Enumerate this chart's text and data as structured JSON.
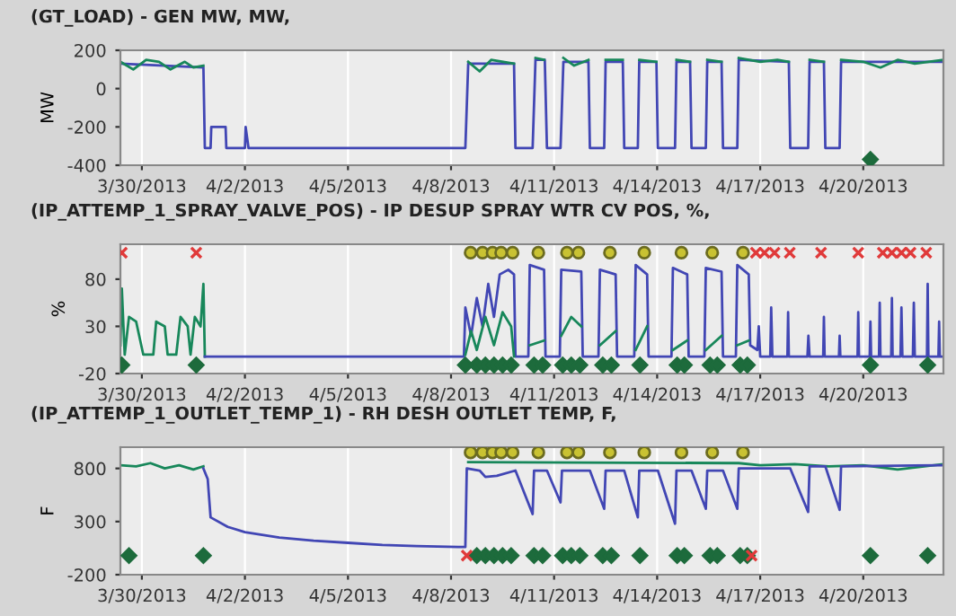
{
  "chart_data": [
    {
      "type": "line",
      "title": "(GT_LOAD) - GEN MW, MW,",
      "ylabel": "MW",
      "xlim": [
        "2013-03-29T09:00",
        "2013-04-22T08:00"
      ],
      "ylim": [
        -400,
        200
      ],
      "yticks": [
        -400,
        -200,
        0,
        200
      ],
      "xticks": [
        {
          "value": "2013-03-30",
          "label": "3/30/2013"
        },
        {
          "value": "2013-04-02",
          "label": "4/2/2013"
        },
        {
          "value": "2013-04-05",
          "label": "4/5/2013"
        },
        {
          "value": "2013-04-08",
          "label": "4/8/2013"
        },
        {
          "value": "2013-04-11",
          "label": "4/11/2013"
        },
        {
          "value": "2013-04-14",
          "label": "4/14/2013"
        },
        {
          "value": "2013-04-17",
          "label": "4/17/2013"
        },
        {
          "value": "2013-04-20",
          "label": "4/20/2013"
        }
      ],
      "grid": "x",
      "series": [
        {
          "type": "line",
          "color": "#4146b4",
          "x": [
            "2013-03-29T09:00",
            "2013-03-31T19:00",
            "2013-03-31T20:00",
            "2013-04-01T00:00",
            "2013-04-01T00:30",
            "2013-04-01T10:30",
            "2013-04-01T11:00",
            "2013-04-02T00:00",
            "2013-04-02T00:30",
            "2013-04-02T02:30",
            "2013-04-08T10:00",
            "2013-04-08T12:00",
            "2013-04-09T20:00",
            "2013-04-09T21:00",
            "2013-04-10T09:00",
            "2013-04-10T11:00",
            "2013-04-10T17:30",
            "2013-04-10T19:00",
            "2013-04-11T04:30",
            "2013-04-11T06:30",
            "2013-04-12T00:00",
            "2013-04-12T01:00",
            "2013-04-12T11:00",
            "2013-04-12T12:00",
            "2013-04-13T00:00",
            "2013-04-13T01:00",
            "2013-04-13T10:30",
            "2013-04-13T11:30",
            "2013-04-13T23:30",
            "2013-04-14T00:30",
            "2013-04-14T12:30",
            "2013-04-14T13:30",
            "2013-04-14T23:00",
            "2013-04-15T00:00",
            "2013-04-15T10:00",
            "2013-04-15T11:00",
            "2013-04-15T21:00",
            "2013-04-15T22:00",
            "2013-04-16T08:00",
            "2013-04-16T09:00",
            "2013-04-17T20:00",
            "2013-04-17T21:00",
            "2013-04-18T09:30",
            "2013-04-18T10:30",
            "2013-04-18T20:30",
            "2013-04-18T21:30",
            "2013-04-19T07:30",
            "2013-04-19T08:30",
            "2013-04-22T08:00"
          ],
          "values": [
            130,
            110,
            -310,
            -310,
            -200,
            -200,
            -310,
            -310,
            -200,
            -310,
            -310,
            130,
            130,
            -310,
            -310,
            150,
            150,
            -310,
            -310,
            140,
            140,
            -310,
            -310,
            140,
            140,
            -310,
            -310,
            140,
            140,
            -310,
            -310,
            140,
            140,
            -310,
            -310,
            140,
            140,
            -310,
            -310,
            150,
            140,
            -310,
            -310,
            140,
            140,
            -310,
            -310,
            140,
            140
          ]
        },
        {
          "type": "line",
          "color": "#17875a",
          "x": [
            "2013-03-29T09:00",
            "2013-03-29T18:00",
            "2013-03-30T03:00",
            "2013-03-30T12:00",
            "2013-03-30T20:00",
            "2013-03-31T06:00",
            "2013-03-31T12:00",
            "2013-03-31T19:00",
            "2013-03-31T20:00",
            "2013-04-08T12:00",
            "2013-04-08T20:00",
            "2013-04-09T04:00",
            "2013-04-09T20:00",
            "2013-04-09T21:00",
            "2013-04-10T11:00",
            "2013-04-10T17:00",
            "2013-04-10T18:00",
            "2013-04-11T06:30",
            "2013-04-11T14:00",
            "2013-04-12T00:00",
            "2013-04-12T01:00",
            "2013-04-12T12:00",
            "2013-04-13T00:00",
            "2013-04-13T01:00",
            "2013-04-13T11:30",
            "2013-04-13T23:30",
            "2013-04-14T00:30",
            "2013-04-14T13:30",
            "2013-04-14T23:00",
            "2013-04-15T00:00",
            "2013-04-15T11:00",
            "2013-04-15T21:00",
            "2013-04-15T22:00",
            "2013-04-16T09:00",
            "2013-04-17T00:00",
            "2013-04-17T12:00",
            "2013-04-17T20:00",
            "2013-04-17T21:00",
            "2013-04-18T10:30",
            "2013-04-18T20:30",
            "2013-04-18T21:30",
            "2013-04-19T08:30",
            "2013-04-20T00:00",
            "2013-04-20T12:00",
            "2013-04-21T00:00",
            "2013-04-21T12:00",
            "2013-04-22T08:00"
          ],
          "values": [
            140,
            100,
            150,
            140,
            100,
            140,
            110,
            120,
            null,
            140,
            90,
            150,
            130,
            null,
            160,
            150,
            null,
            160,
            120,
            150,
            null,
            150,
            150,
            null,
            150,
            140,
            null,
            150,
            140,
            null,
            150,
            140,
            null,
            160,
            140,
            150,
            140,
            null,
            150,
            140,
            null,
            150,
            140,
            110,
            150,
            130,
            150
          ]
        },
        {
          "type": "scatter",
          "marker": "diamond",
          "color": "#1d6b3c",
          "x": [
            "2013-04-20T05:00"
          ],
          "values": [
            -370
          ]
        }
      ]
    },
    {
      "type": "line",
      "title": "(IP_ATTEMP_1_SPRAY_VALVE_POS) - IP DESUP SPRAY WTR CV POS, %,",
      "ylabel": "%",
      "xlim": [
        "2013-03-29T09:00",
        "2013-04-22T08:00"
      ],
      "ylim": [
        -20,
        117
      ],
      "yticks": [
        -20,
        30,
        80
      ],
      "xticks": [
        {
          "value": "2013-03-30",
          "label": "3/30/2013"
        },
        {
          "value": "2013-04-02",
          "label": "4/2/2013"
        },
        {
          "value": "2013-04-05",
          "label": "4/5/2013"
        },
        {
          "value": "2013-04-08",
          "label": "4/8/2013"
        },
        {
          "value": "2013-04-11",
          "label": "4/11/2013"
        },
        {
          "value": "2013-04-14",
          "label": "4/14/2013"
        },
        {
          "value": "2013-04-17",
          "label": "4/17/2013"
        },
        {
          "value": "2013-04-20",
          "label": "4/20/2013"
        }
      ],
      "grid": "x",
      "series": [
        {
          "type": "line",
          "color": "#17875a",
          "x": [
            "2013-03-29T09:00",
            "2013-03-29T10:00",
            "2013-03-29T12:00",
            "2013-03-29T15:00",
            "2013-03-29T20:00",
            "2013-03-30T01:00",
            "2013-03-30T08:00",
            "2013-03-30T10:00",
            "2013-03-30T16:00",
            "2013-03-30T18:00",
            "2013-03-31T00:00",
            "2013-03-31T03:00",
            "2013-03-31T08:00",
            "2013-03-31T10:00",
            "2013-03-31T13:00",
            "2013-03-31T17:00",
            "2013-03-31T19:00",
            "2013-03-31T20:00"
          ],
          "values": [
            10,
            70,
            0,
            40,
            35,
            0,
            0,
            35,
            30,
            0,
            0,
            40,
            30,
            0,
            40,
            30,
            75,
            -2
          ]
        },
        {
          "type": "line",
          "color": "#4146b4",
          "x": [
            "2013-03-31T20:00",
            "2013-04-08T09:00",
            "2013-04-08T10:00",
            "2013-04-08T14:00",
            "2013-04-08T18:00",
            "2013-04-08T22:00",
            "2013-04-09T02:00",
            "2013-04-09T06:00",
            "2013-04-09T10:00",
            "2013-04-09T16:00",
            "2013-04-09T20:00",
            "2013-04-09T21:00",
            "2013-04-10T06:00",
            "2013-04-10T07:00",
            "2013-04-10T17:00",
            "2013-04-10T18:00",
            "2013-04-11T04:00",
            "2013-04-11T05:00",
            "2013-04-11T19:00",
            "2013-04-11T20:00",
            "2013-04-12T07:00",
            "2013-04-12T08:00",
            "2013-04-12T19:00",
            "2013-04-12T20:00",
            "2013-04-13T08:00",
            "2013-04-13T09:00",
            "2013-04-13T17:00",
            "2013-04-13T18:00",
            "2013-04-14T10:00",
            "2013-04-14T11:00",
            "2013-04-14T21:00",
            "2013-04-14T22:00",
            "2013-04-15T09:00",
            "2013-04-15T10:00",
            "2013-04-15T21:00",
            "2013-04-15T22:00",
            "2013-04-16T07:00",
            "2013-04-16T08:00",
            "2013-04-16T16:00",
            "2013-04-16T17:00",
            "2013-04-16T22:00",
            "2013-04-16T23:00",
            "2013-04-17T00:00",
            "2013-04-17T07:00",
            "2013-04-17T07:40",
            "2013-04-17T08:30",
            "2013-04-17T19:00",
            "2013-04-17T19:30",
            "2013-04-17T20:00",
            "2013-04-18T09:00",
            "2013-04-18T09:40",
            "2013-04-18T10:30",
            "2013-04-18T20:00",
            "2013-04-18T20:30",
            "2013-04-18T21:00",
            "2013-04-19T07:00",
            "2013-04-19T07:30",
            "2013-04-19T08:00",
            "2013-04-19T20:00",
            "2013-04-19T20:30",
            "2013-04-19T21:00",
            "2013-04-20T04:30",
            "2013-04-20T05:00",
            "2013-04-20T05:30",
            "2013-04-20T11:00",
            "2013-04-20T11:30",
            "2013-04-20T12:00",
            "2013-04-20T19:30",
            "2013-04-20T20:00",
            "2013-04-20T20:30",
            "2013-04-21T02:00",
            "2013-04-21T02:40",
            "2013-04-21T03:20",
            "2013-04-21T10:40",
            "2013-04-21T11:20",
            "2013-04-21T12:00",
            "2013-04-21T20:30",
            "2013-04-21T21:00",
            "2013-04-21T21:30",
            "2013-04-22T04:30",
            "2013-04-22T05:00",
            "2013-04-22T05:30",
            "2013-04-22T08:00"
          ],
          "values": [
            -2,
            -2,
            50,
            20,
            60,
            30,
            75,
            40,
            85,
            90,
            85,
            -2,
            -2,
            95,
            90,
            -2,
            -2,
            90,
            88,
            -2,
            -2,
            90,
            85,
            -2,
            -2,
            95,
            85,
            -2,
            -2,
            92,
            85,
            -2,
            -2,
            92,
            88,
            -2,
            -2,
            95,
            85,
            10,
            5,
            30,
            -2,
            -2,
            50,
            -2,
            -2,
            45,
            -2,
            -2,
            20,
            -2,
            -2,
            40,
            -2,
            -2,
            20,
            -2,
            -2,
            45,
            -2,
            -2,
            35,
            -2,
            -2,
            55,
            -2,
            -2,
            60,
            -2,
            -2,
            50,
            -2,
            -2,
            55,
            -2,
            -2,
            75,
            -2,
            -2,
            35,
            -2,
            -2
          ]
        },
        {
          "type": "line",
          "color": "#17875a",
          "x": [
            "2013-04-08T10:00",
            "2013-04-08T14:00",
            "2013-04-08T18:00",
            "2013-04-09T00:00",
            "2013-04-09T06:00",
            "2013-04-09T12:00",
            "2013-04-09T18:00",
            "2013-04-09T20:00",
            "2013-04-10T00:00",
            "2013-04-10T07:00",
            "2013-04-10T17:00",
            "2013-04-11T00:00",
            "2013-04-11T05:00",
            "2013-04-11T12:00",
            "2013-04-11T19:00",
            "2013-04-12T00:00",
            "2013-04-12T08:00",
            "2013-04-12T19:00",
            "2013-04-13T00:00",
            "2013-04-13T09:00",
            "2013-04-13T17:00",
            "2013-04-14T00:00",
            "2013-04-14T11:00",
            "2013-04-14T21:00",
            "2013-04-15T00:00",
            "2013-04-15T10:00",
            "2013-04-15T21:00",
            "2013-04-16T00:00",
            "2013-04-16T08:00",
            "2013-04-16T16:00"
          ],
          "values": [
            0,
            25,
            5,
            40,
            10,
            45,
            30,
            -2,
            null,
            10,
            15,
            null,
            20,
            40,
            30,
            null,
            10,
            25,
            null,
            5,
            30,
            null,
            5,
            15,
            null,
            5,
            20,
            null,
            10,
            15
          ]
        },
        {
          "type": "scatter",
          "marker": "cross",
          "color": "#e03a3a",
          "x": [
            "2013-03-29T10:00",
            "2013-03-31T14:00",
            "2013-04-16T21:00",
            "2013-04-17T03:00",
            "2013-04-17T10:00",
            "2013-04-17T20:40",
            "2013-04-18T18:30",
            "2013-04-19T20:30",
            "2013-04-20T13:40",
            "2013-04-20T20:00",
            "2013-04-21T02:40",
            "2013-04-21T09:00",
            "2013-04-21T20:00"
          ],
          "values": [
            108,
            108,
            108,
            108,
            108,
            108,
            108,
            108,
            108,
            108,
            108,
            108,
            108
          ]
        },
        {
          "type": "scatter",
          "marker": "circle",
          "color": "#c9c232",
          "x": [
            "2013-04-08T13:40",
            "2013-04-08T22:00",
            "2013-04-09T05:00",
            "2013-04-09T11:00",
            "2013-04-09T19:00",
            "2013-04-10T13:00",
            "2013-04-11T09:00",
            "2013-04-11T17:00",
            "2013-04-12T15:00",
            "2013-04-13T15:00",
            "2013-04-14T17:00",
            "2013-04-15T14:30",
            "2013-04-16T12:00"
          ],
          "values": [
            108,
            108,
            108,
            108,
            108,
            108,
            108,
            108,
            108,
            108,
            108,
            108,
            108
          ]
        },
        {
          "type": "scatter",
          "marker": "diamond",
          "color": "#1d6b3c",
          "x": [
            "2013-03-29T10:00",
            "2013-03-31T14:00",
            "2013-04-08T10:00",
            "2013-04-08T18:00",
            "2013-04-09T00:00",
            "2013-04-09T06:00",
            "2013-04-09T12:00",
            "2013-04-09T18:00",
            "2013-04-10T10:00",
            "2013-04-10T16:00",
            "2013-04-11T06:00",
            "2013-04-11T12:00",
            "2013-04-11T18:00",
            "2013-04-12T10:00",
            "2013-04-12T16:00",
            "2013-04-13T12:00",
            "2013-04-14T14:00",
            "2013-04-14T19:00",
            "2013-04-15T13:00",
            "2013-04-15T18:00",
            "2013-04-16T10:00",
            "2013-04-16T15:00",
            "2013-04-20T05:00",
            "2013-04-21T21:00"
          ],
          "values": [
            -11,
            -11,
            -11,
            -11,
            -11,
            -11,
            -11,
            -11,
            -11,
            -11,
            -11,
            -11,
            -11,
            -11,
            -11,
            -11,
            -11,
            -11,
            -11,
            -11,
            -11,
            -11,
            -11,
            -11
          ]
        }
      ]
    },
    {
      "type": "line",
      "title": "(IP_ATTEMP_1_OUTLET_TEMP_1) - RH DESH OUTLET TEMP, F,",
      "ylabel": "F",
      "xlim": [
        "2013-03-29T09:00",
        "2013-04-22T08:00"
      ],
      "ylim": [
        -200,
        1000
      ],
      "yticks": [
        -200,
        300,
        800
      ],
      "xticks": [
        {
          "value": "2013-03-30",
          "label": "3/30/2013"
        },
        {
          "value": "2013-04-02",
          "label": "4/2/2013"
        },
        {
          "value": "2013-04-05",
          "label": "4/5/2013"
        },
        {
          "value": "2013-04-08",
          "label": "4/8/2013"
        },
        {
          "value": "2013-04-11",
          "label": "4/11/2013"
        },
        {
          "value": "2013-04-14",
          "label": "4/14/2013"
        },
        {
          "value": "2013-04-17",
          "label": "4/17/2013"
        },
        {
          "value": "2013-04-20",
          "label": "4/20/2013"
        }
      ],
      "grid": "x",
      "series": [
        {
          "type": "line",
          "color": "#17875a",
          "x": [
            "2013-03-29T09:00",
            "2013-03-29T20:00",
            "2013-03-30T06:00",
            "2013-03-30T16:00",
            "2013-03-31T02:00",
            "2013-03-31T12:00",
            "2013-03-31T19:00",
            "2013-03-31T20:00",
            "2013-04-08T12:00",
            "2013-04-16T09:00",
            "2013-04-17T00:00",
            "2013-04-18T00:00",
            "2013-04-19T00:00",
            "2013-04-20T00:00",
            "2013-04-21T00:00",
            "2013-04-22T08:00"
          ],
          "values": [
            830,
            820,
            850,
            800,
            830,
            790,
            820,
            null,
            860,
            850,
            830,
            840,
            820,
            830,
            790,
            840
          ]
        },
        {
          "type": "line",
          "color": "#4146b4",
          "x": [
            "2013-03-31T19:00",
            "2013-03-31T22:00",
            "2013-04-01T00:00",
            "2013-04-01T12:00",
            "2013-04-02T00:00",
            "2013-04-03T00:00",
            "2013-04-04T00:00",
            "2013-04-05T00:00",
            "2013-04-06T00:00",
            "2013-04-07T00:00",
            "2013-04-08T10:00",
            "2013-04-08T11:00",
            "2013-04-08T20:00",
            "2013-04-09T00:00",
            "2013-04-09T08:00",
            "2013-04-09T21:00",
            "2013-04-10T09:00",
            "2013-04-10T10:00",
            "2013-04-10T19:00",
            "2013-04-11T04:30",
            "2013-04-11T05:30",
            "2013-04-12T01:00",
            "2013-04-12T11:00",
            "2013-04-12T12:00",
            "2013-04-13T01:00",
            "2013-04-13T10:30",
            "2013-04-13T11:30",
            "2013-04-14T00:30",
            "2013-04-14T12:30",
            "2013-04-14T13:30",
            "2013-04-15T00:00",
            "2013-04-15T10:00",
            "2013-04-15T11:00",
            "2013-04-15T22:00",
            "2013-04-16T08:00",
            "2013-04-16T09:00",
            "2013-04-17T21:00",
            "2013-04-18T09:30",
            "2013-04-18T10:30",
            "2013-04-18T21:30",
            "2013-04-19T07:30",
            "2013-04-19T08:30",
            "2013-04-22T08:00"
          ],
          "values": [
            800,
            700,
            340,
            250,
            200,
            150,
            120,
            100,
            80,
            70,
            60,
            800,
            780,
            720,
            730,
            780,
            370,
            780,
            780,
            480,
            780,
            780,
            420,
            780,
            780,
            340,
            780,
            780,
            280,
            780,
            780,
            420,
            780,
            780,
            420,
            800,
            800,
            390,
            820,
            820,
            410,
            820,
            830
          ]
        },
        {
          "type": "scatter",
          "marker": "circle",
          "color": "#c9c232",
          "x": [
            "2013-04-08T13:40",
            "2013-04-08T22:00",
            "2013-04-09T05:00",
            "2013-04-09T11:00",
            "2013-04-09T19:00",
            "2013-04-10T13:00",
            "2013-04-11T09:00",
            "2013-04-11T17:00",
            "2013-04-12T15:00",
            "2013-04-13T15:00",
            "2013-04-14T17:00",
            "2013-04-15T14:30",
            "2013-04-16T12:00"
          ],
          "values": [
            950,
            950,
            950,
            950,
            950,
            950,
            950,
            950,
            950,
            950,
            950,
            950,
            950
          ]
        },
        {
          "type": "scatter",
          "marker": "diamond",
          "color": "#1d6b3c",
          "x": [
            "2013-03-29T15:00",
            "2013-03-31T19:00",
            "2013-04-08T18:00",
            "2013-04-09T00:00",
            "2013-04-09T06:00",
            "2013-04-09T12:00",
            "2013-04-09T18:00",
            "2013-04-10T10:00",
            "2013-04-10T16:00",
            "2013-04-11T06:00",
            "2013-04-11T12:00",
            "2013-04-11T18:00",
            "2013-04-12T10:00",
            "2013-04-12T16:00",
            "2013-04-13T12:00",
            "2013-04-14T14:00",
            "2013-04-14T19:00",
            "2013-04-15T13:00",
            "2013-04-15T18:00",
            "2013-04-16T10:00",
            "2013-04-16T15:00",
            "2013-04-20T05:00",
            "2013-04-21T21:00"
          ],
          "values": [
            -20,
            -20,
            -20,
            -20,
            -20,
            -20,
            -20,
            -20,
            -20,
            -20,
            -20,
            -20,
            -20,
            -20,
            -20,
            -20,
            -20,
            -20,
            -20,
            -20,
            -20,
            -20,
            -20
          ]
        },
        {
          "type": "scatter",
          "marker": "cross",
          "color": "#e03a3a",
          "x": [
            "2013-04-08T11:00",
            "2013-04-16T18:00"
          ],
          "values": [
            -20,
            -20
          ]
        }
      ]
    }
  ]
}
